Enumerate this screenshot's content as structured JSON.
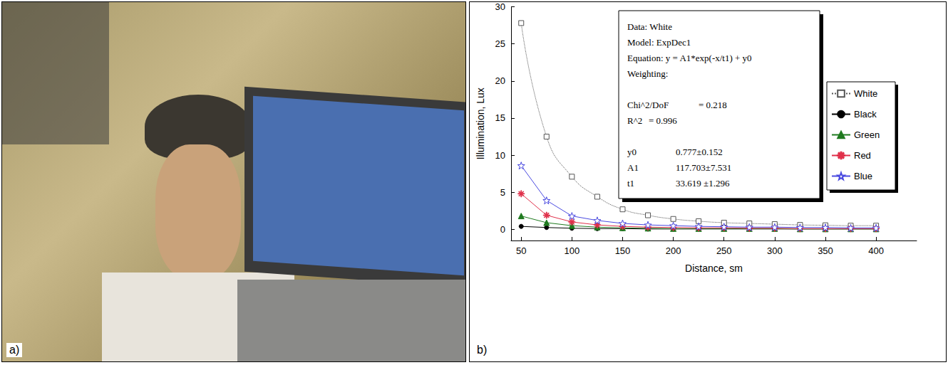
{
  "panel_labels": [
    "a)",
    "b)"
  ],
  "chart_data": {
    "type": "line",
    "x_label": "Distance, sm",
    "y_label": "Illumination, Lux",
    "x": [
      50,
      75,
      100,
      125,
      150,
      175,
      200,
      225,
      250,
      275,
      300,
      325,
      350,
      375,
      400
    ],
    "xlim": [
      40,
      440
    ],
    "xticks": [
      50,
      100,
      150,
      200,
      250,
      300,
      350,
      400
    ],
    "ylim": [
      -1.5,
      30
    ],
    "yticks": [
      0,
      5,
      10,
      15,
      20,
      25,
      30
    ],
    "grid": false,
    "legend": "right",
    "series": [
      {
        "name": "White",
        "color": "#555555",
        "marker": "square_open",
        "line_style": "dotted",
        "values": [
          27.8,
          12.5,
          7.1,
          4.4,
          2.7,
          1.9,
          1.4,
          1.1,
          0.9,
          0.8,
          0.7,
          0.6,
          0.55,
          0.5,
          0.5
        ]
      },
      {
        "name": "Black",
        "color": "#000000",
        "marker": "circle",
        "line_style": "solid",
        "values": [
          0.4,
          0.25,
          0.15,
          0.1,
          0.1,
          0.05,
          0.05,
          0.05,
          0.05,
          0.05,
          0.05,
          0.05,
          0.05,
          0.05,
          0.05
        ]
      },
      {
        "name": "Green",
        "color": "#1f7a1f",
        "marker": "triangle",
        "line_style": "solid",
        "values": [
          1.8,
          0.9,
          0.5,
          0.3,
          0.2,
          0.15,
          0.1,
          0.1,
          0.1,
          0.1,
          0.1,
          0.05,
          0.05,
          0.05,
          0.05
        ]
      },
      {
        "name": "Red",
        "color": "#e0304a",
        "marker": "asterisk",
        "line_style": "solid",
        "values": [
          4.8,
          1.9,
          1.0,
          0.6,
          0.4,
          0.3,
          0.25,
          0.2,
          0.2,
          0.15,
          0.15,
          0.1,
          0.1,
          0.1,
          0.1
        ]
      },
      {
        "name": "Blue",
        "color": "#4a4ae0",
        "marker": "star_open",
        "line_style": "solid",
        "values": [
          8.6,
          3.9,
          1.8,
          1.2,
          0.8,
          0.6,
          0.5,
          0.4,
          0.35,
          0.3,
          0.3,
          0.25,
          0.25,
          0.2,
          0.2
        ]
      }
    ],
    "fit_box": {
      "lines": [
        "Data: White",
        "Model: ExpDec1",
        "Equation: y = A1*exp(-x/t1) + y0",
        "Weighting:"
      ],
      "stats": [
        [
          "Chi^2/DoF",
          "= 0.218"
        ],
        [
          "R^2",
          "= 0.996"
        ]
      ],
      "params": [
        [
          "y0",
          "0.777±0.152"
        ],
        [
          "A1",
          "117.703±7.531"
        ],
        [
          "t1",
          "33.619 ±1.296"
        ]
      ]
    }
  }
}
